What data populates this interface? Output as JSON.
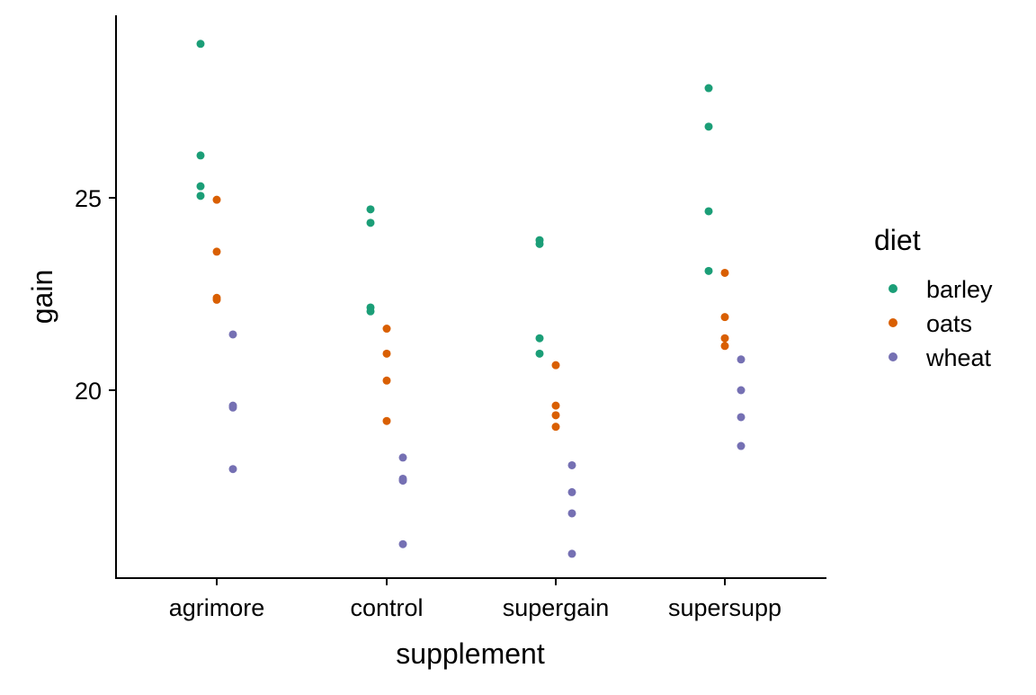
{
  "chart_data": {
    "type": "scatter",
    "xlabel": "supplement",
    "ylabel": "gain",
    "categories": [
      "agrimore",
      "control",
      "supergain",
      "supersupp"
    ],
    "y_ticks": [
      20,
      25
    ],
    "ylim": [
      15.5,
      29.9
    ],
    "grid": false,
    "legend": {
      "title": "diet",
      "placement": "right"
    },
    "series": [
      {
        "name": "barley",
        "color": "#1b9e77",
        "points": [
          {
            "category": "agrimore",
            "y": 29.0
          },
          {
            "category": "agrimore",
            "y": 26.1
          },
          {
            "category": "agrimore",
            "y": 25.3
          },
          {
            "category": "agrimore",
            "y": 25.05
          },
          {
            "category": "control",
            "y": 24.7
          },
          {
            "category": "control",
            "y": 24.35
          },
          {
            "category": "control",
            "y": 22.15
          },
          {
            "category": "control",
            "y": 22.05
          },
          {
            "category": "supergain",
            "y": 23.9
          },
          {
            "category": "supergain",
            "y": 23.8
          },
          {
            "category": "supergain",
            "y": 21.35
          },
          {
            "category": "supergain",
            "y": 20.95
          },
          {
            "category": "supersupp",
            "y": 27.85
          },
          {
            "category": "supersupp",
            "y": 26.85
          },
          {
            "category": "supersupp",
            "y": 24.65
          },
          {
            "category": "supersupp",
            "y": 23.1
          }
        ]
      },
      {
        "name": "oats",
        "color": "#d95f02",
        "points": [
          {
            "category": "agrimore",
            "y": 24.95
          },
          {
            "category": "agrimore",
            "y": 23.6
          },
          {
            "category": "agrimore",
            "y": 22.4
          },
          {
            "category": "agrimore",
            "y": 22.35
          },
          {
            "category": "control",
            "y": 21.6
          },
          {
            "category": "control",
            "y": 20.95
          },
          {
            "category": "control",
            "y": 20.25
          },
          {
            "category": "control",
            "y": 19.2
          },
          {
            "category": "supergain",
            "y": 20.65
          },
          {
            "category": "supergain",
            "y": 19.6
          },
          {
            "category": "supergain",
            "y": 19.35
          },
          {
            "category": "supergain",
            "y": 19.05
          },
          {
            "category": "supersupp",
            "y": 23.05
          },
          {
            "category": "supersupp",
            "y": 21.9
          },
          {
            "category": "supersupp",
            "y": 21.35
          },
          {
            "category": "supersupp",
            "y": 21.15
          }
        ]
      },
      {
        "name": "wheat",
        "color": "#7570b3",
        "points": [
          {
            "category": "agrimore",
            "y": 21.45
          },
          {
            "category": "agrimore",
            "y": 19.6
          },
          {
            "category": "agrimore",
            "y": 19.55
          },
          {
            "category": "agrimore",
            "y": 17.95
          },
          {
            "category": "control",
            "y": 18.25
          },
          {
            "category": "control",
            "y": 17.7
          },
          {
            "category": "control",
            "y": 17.65
          },
          {
            "category": "control",
            "y": 16.0
          },
          {
            "category": "supergain",
            "y": 18.05
          },
          {
            "category": "supergain",
            "y": 17.35
          },
          {
            "category": "supergain",
            "y": 16.8
          },
          {
            "category": "supergain",
            "y": 15.75
          },
          {
            "category": "supersupp",
            "y": 20.8
          },
          {
            "category": "supersupp",
            "y": 20.0
          },
          {
            "category": "supersupp",
            "y": 19.3
          },
          {
            "category": "supersupp",
            "y": 18.55
          }
        ]
      }
    ]
  }
}
